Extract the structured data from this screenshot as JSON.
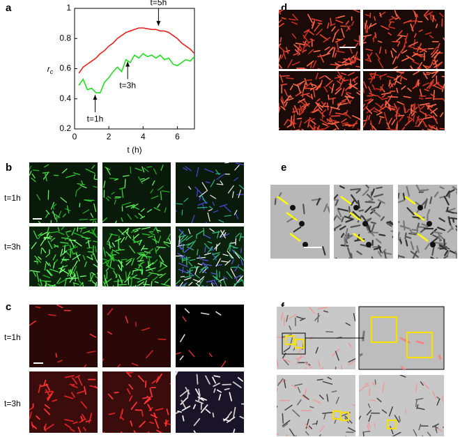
{
  "chart_data": {
    "type": "line",
    "x": [
      0.25,
      0.5,
      0.75,
      1,
      1.25,
      1.5,
      1.75,
      2,
      2.25,
      2.5,
      2.75,
      3,
      3.25,
      3.5,
      3.75,
      4,
      4.25,
      4.5,
      4.75,
      5,
      5.25,
      5.5,
      5.75,
      6,
      6.25,
      6.5,
      6.75,
      7
    ],
    "series": [
      {
        "color": "#e8201e",
        "values": [
          0.57,
          0.61,
          0.63,
          0.65,
          0.67,
          0.7,
          0.72,
          0.75,
          0.77,
          0.8,
          0.82,
          0.84,
          0.85,
          0.86,
          0.87,
          0.87,
          0.865,
          0.86,
          0.86,
          0.85,
          0.85,
          0.84,
          0.82,
          0.8,
          0.77,
          0.75,
          0.73,
          0.7
        ]
      },
      {
        "color": "#22dd22",
        "values": [
          0.49,
          0.53,
          0.46,
          0.47,
          0.44,
          0.44,
          0.51,
          0.54,
          0.58,
          0.61,
          0.58,
          0.66,
          0.64,
          0.69,
          0.67,
          0.7,
          0.68,
          0.69,
          0.67,
          0.69,
          0.66,
          0.67,
          0.63,
          0.62,
          0.64,
          0.66,
          0.65,
          0.68
        ]
      }
    ],
    "xlabel": "t (h)",
    "ylabel": "r",
    "ylabel_subscript": "c",
    "xlim": [
      0,
      7
    ],
    "xticks": [
      0,
      2,
      4,
      6
    ],
    "ylim": [
      0.2,
      1
    ],
    "yticks": [
      0.2,
      0.4,
      0.6,
      0.8,
      1
    ],
    "annotations": [
      {
        "text": "t=5h",
        "x": 4.9,
        "y": 0.87,
        "direction": "down"
      },
      {
        "text": "t=3h",
        "x": 3.1,
        "y": 0.66,
        "direction": "up"
      },
      {
        "text": "t=1h",
        "x": 1.2,
        "y": 0.44,
        "direction": "up"
      }
    ]
  },
  "panels": {
    "a": "a",
    "b": "b",
    "c": "c",
    "d": "d",
    "e": "e",
    "f": "f"
  },
  "row_labels": {
    "b_1": "t=1h",
    "b_2": "t=3h",
    "c_1": "t=1h",
    "c_2": "t=3h"
  }
}
